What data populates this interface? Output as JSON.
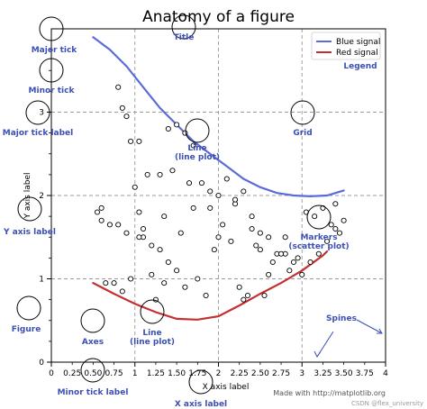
{
  "chart_data": {
    "type": "line",
    "title": "Anatomy of a figure",
    "xlabel": "X axis label",
    "ylabel": "Y axis label",
    "xlim": [
      0,
      4
    ],
    "ylim": [
      0,
      4
    ],
    "grid": true,
    "legend_position": "top-right",
    "x_major_ticks": [
      0,
      1,
      2,
      3,
      4
    ],
    "x_minor_ticks": [
      0.25,
      0.5,
      0.75,
      1.25,
      1.5,
      1.75,
      2.25,
      2.5,
      2.75,
      3.25,
      3.5,
      3.75
    ],
    "y_major_ticks": [
      0,
      1,
      2,
      3
    ],
    "x_major_labels": [
      "0",
      "1",
      "2",
      "3",
      "4"
    ],
    "x_minor_labels": [
      "0.25",
      "0.50",
      "0.75",
      "1.25",
      "1.50",
      "1.75",
      "2.25",
      "2.50",
      "2.75",
      "3.25",
      "3.50",
      "3.75"
    ],
    "y_major_labels": [
      "0",
      "1",
      "2",
      "3"
    ],
    "series": [
      {
        "name": "Blue signal",
        "color": "#5b6cd8",
        "kind": "line",
        "x": [
          0.5,
          0.7,
          0.9,
          1.1,
          1.3,
          1.5,
          1.7,
          1.9,
          2.1,
          2.3,
          2.5,
          2.7,
          2.9,
          3.1,
          3.3,
          3.5
        ],
        "y": [
          3.9,
          3.75,
          3.55,
          3.3,
          3.05,
          2.85,
          2.65,
          2.5,
          2.35,
          2.2,
          2.1,
          2.03,
          2.0,
          1.99,
          2.0,
          2.06
        ]
      },
      {
        "name": "Red signal",
        "color": "#c62f2f",
        "kind": "line",
        "x": [
          0.5,
          0.75,
          1.0,
          1.25,
          1.5,
          1.75,
          2.0,
          2.25,
          2.5,
          2.75,
          3.0,
          3.25,
          3.3
        ],
        "y": [
          0.95,
          0.82,
          0.7,
          0.6,
          0.52,
          0.51,
          0.55,
          0.68,
          0.82,
          0.95,
          1.1,
          1.28,
          1.33
        ]
      },
      {
        "kind": "scatter",
        "color": "#000000",
        "x": [
          0.8,
          0.85,
          0.9,
          0.95,
          1.05,
          1.0,
          0.6,
          0.55,
          0.6,
          0.7,
          0.8,
          0.9,
          1.1,
          1.1,
          1.2,
          1.3,
          1.3,
          1.4,
          1.5,
          1.6,
          1.7,
          1.8,
          1.9,
          2.0,
          2.1,
          2.2,
          2.3,
          2.4,
          2.5,
          2.6,
          2.7,
          2.8,
          2.9,
          3.0,
          3.1,
          3.2,
          3.3,
          3.4,
          3.5,
          1.4,
          1.5,
          1.2,
          1.35,
          1.6,
          1.75,
          1.85,
          2.0,
          2.15,
          2.25,
          2.4,
          2.55,
          2.65,
          2.75,
          2.85,
          0.65,
          0.95,
          1.25,
          1.45,
          1.65,
          1.95,
          2.05,
          2.35,
          2.5,
          3.05,
          3.15,
          3.25,
          3.4,
          0.85,
          1.05,
          1.55,
          1.15,
          1.35,
          1.7,
          2.2,
          2.45,
          2.6,
          2.8,
          2.95,
          3.35,
          3.45,
          0.75,
          1.05,
          2.3,
          1.9
        ],
        "y": [
          3.3,
          3.05,
          2.95,
          2.65,
          2.65,
          2.1,
          1.85,
          1.8,
          1.7,
          1.65,
          1.65,
          1.55,
          1.6,
          1.5,
          1.4,
          1.35,
          2.25,
          2.8,
          2.85,
          2.75,
          2.6,
          2.15,
          2.05,
          2.0,
          2.2,
          1.9,
          2.05,
          1.75,
          1.55,
          1.5,
          1.3,
          1.3,
          1.2,
          1.05,
          1.2,
          1.3,
          1.45,
          1.6,
          1.7,
          1.2,
          1.1,
          1.05,
          0.95,
          0.9,
          1.0,
          0.8,
          1.5,
          1.45,
          0.9,
          1.6,
          0.8,
          1.2,
          1.3,
          1.1,
          0.95,
          1.0,
          0.75,
          2.3,
          2.15,
          1.35,
          1.65,
          0.8,
          1.35,
          1.8,
          1.75,
          1.85,
          1.9,
          0.85,
          1.8,
          1.55,
          2.25,
          1.75,
          1.85,
          1.95,
          1.4,
          1.05,
          1.5,
          1.25,
          1.65,
          1.55,
          0.95,
          1.5,
          0.75,
          1.85
        ]
      }
    ],
    "legend": [
      "Blue signal",
      "Red signal"
    ],
    "annotations": [
      {
        "label": "Major tick",
        "x": 0.04,
        "y": 4.0
      },
      {
        "label": "Minor tick",
        "x": 0.04,
        "y": 3.5
      },
      {
        "label": "Major tick label",
        "x": -0.45,
        "y": 3.0
      },
      {
        "label": "Grid",
        "x": 3.0,
        "y": 3.0
      },
      {
        "label": "Line\n(line plot)",
        "x": 1.75,
        "y": 2.75
      },
      {
        "label": "Markers\n(scatter plot)",
        "x": 3.2,
        "y": 1.75
      },
      {
        "label": "Y axis label",
        "x": -0.45,
        "y": 1.85
      },
      {
        "label": "Figure",
        "x": -0.85,
        "y": 0.65
      },
      {
        "label": "Axes",
        "x": 0.5,
        "y": 0.5
      },
      {
        "label": "Line\n(line plot)",
        "x": 1.2,
        "y": 0.6
      },
      {
        "label": "Spines",
        "x": 2.5,
        "y": 0.5
      },
      {
        "label": "Minor tick label",
        "x": 0.5,
        "y": -0.2
      },
      {
        "label": "X axis label",
        "x": 1.75,
        "y": -0.27
      },
      {
        "label": "Title",
        "x": 1.0,
        "y": 4.1
      },
      {
        "label": "Legend",
        "x": 3.7,
        "y": 3.6
      }
    ],
    "credit": "Made with http://matplotlib.org",
    "watermark": "CSDN @flex_university"
  }
}
